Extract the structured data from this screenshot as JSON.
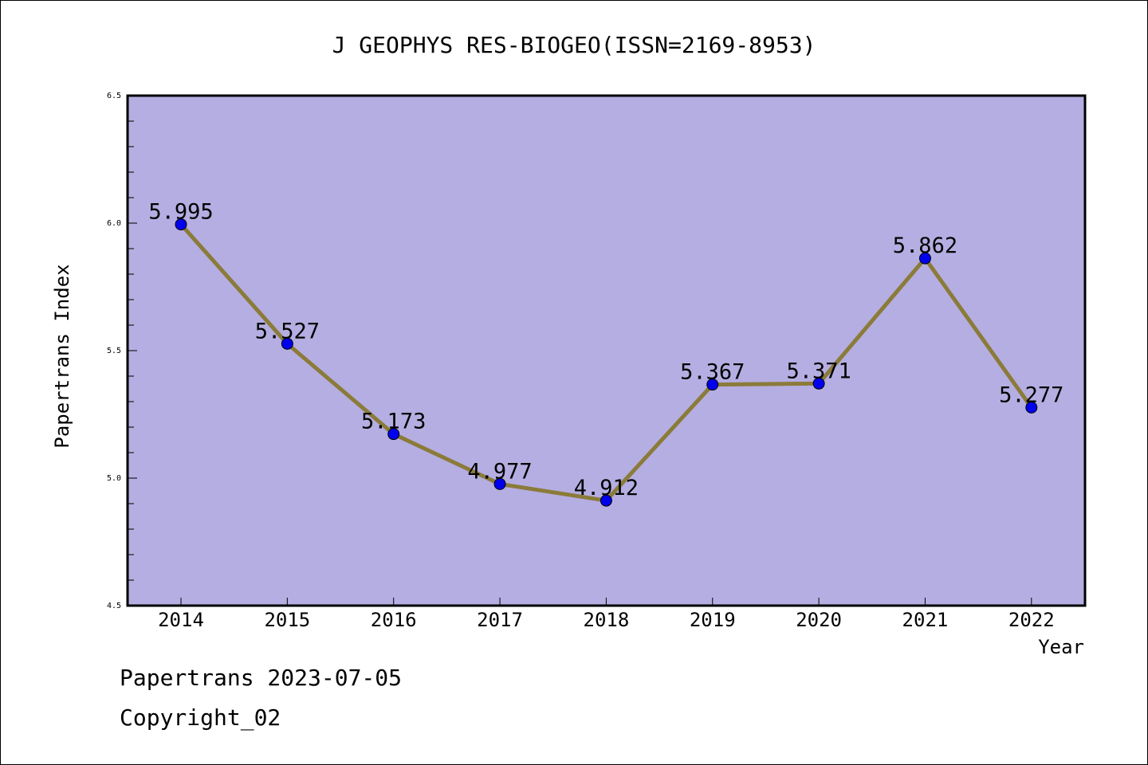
{
  "chart_data": {
    "type": "line",
    "title": "J GEOPHYS RES-BIOGEO(ISSN=2169-8953)",
    "xlabel": "Year",
    "ylabel": "Papertrans Index",
    "categories": [
      "2014",
      "2015",
      "2016",
      "2017",
      "2018",
      "2019",
      "2020",
      "2021",
      "2022"
    ],
    "series": [
      {
        "values": [
          5.995,
          5.527,
          5.173,
          4.977,
          4.912,
          5.367,
          5.371,
          5.862,
          5.277
        ],
        "labels": [
          "5.995",
          "5.527",
          "5.173",
          "4.977",
          "4.912",
          "5.367",
          "5.371",
          "5.862",
          "5.277"
        ]
      }
    ],
    "ylim": [
      4.5,
      6.5
    ],
    "yticks": [
      "4.5",
      "5.0",
      "5.5",
      "6.0",
      "6.5"
    ],
    "grid": false,
    "colors": {
      "plot_background": "#b5aee2",
      "line": "#8b7b3a",
      "marker": "#0000ee"
    }
  },
  "footer": {
    "line1": "Papertrans 2023-07-05",
    "line2": "Copyright_02"
  }
}
